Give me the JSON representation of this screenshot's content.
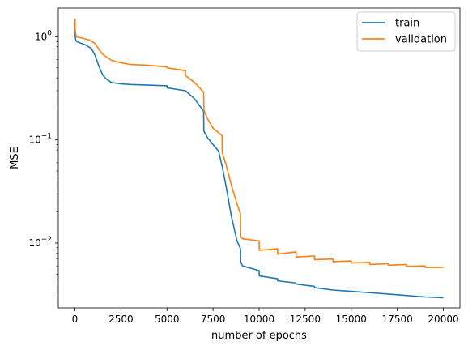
{
  "chart_data": {
    "type": "line",
    "xlabel": "number of epochs",
    "ylabel": "MSE",
    "yscale": "log",
    "xlim": [
      -900,
      20900
    ],
    "ylim": [
      0.00235,
      1.9
    ],
    "grid": false,
    "legend_position": "top-right",
    "x_ticks": [
      0,
      2500,
      5000,
      7500,
      10000,
      12500,
      15000,
      17500,
      20000
    ],
    "x_tick_labels": [
      "0",
      "2500",
      "5000",
      "7500",
      "10000",
      "12500",
      "15000",
      "17500",
      "20000"
    ],
    "y_major_ticks": [
      0.01,
      0.1,
      1
    ],
    "y_tick_labels": [
      {
        "base": "10",
        "exp": "−2"
      },
      {
        "base": "10",
        "exp": "−1"
      },
      {
        "base": "10",
        "exp": "0"
      }
    ],
    "y_minor_ticks": [
      0.003,
      0.004,
      0.005,
      0.006,
      0.007,
      0.008,
      0.009,
      0.02,
      0.03,
      0.04,
      0.05,
      0.06,
      0.07,
      0.08,
      0.09,
      0.2,
      0.3,
      0.4,
      0.5,
      0.6,
      0.7,
      0.8,
      0.9
    ],
    "series": [
      {
        "name": "train",
        "color": "#1f77b4",
        "x": [
          0,
          20,
          50,
          100,
          300,
          600,
          900,
          1100,
          1300,
          1500,
          1700,
          2000,
          2500,
          3000,
          4000,
          5000,
          5010,
          6000,
          6500,
          6990,
          7000,
          7200,
          7500,
          7800,
          8000,
          8200,
          8500,
          8800,
          8990,
          9000,
          9100,
          10000,
          10010,
          11000,
          11010,
          12000,
          12010,
          13000,
          13010,
          14000,
          15000,
          16000,
          17000,
          18000,
          19000,
          20000
        ],
        "y": [
          1.4,
          1.0,
          0.93,
          0.9,
          0.87,
          0.83,
          0.77,
          0.66,
          0.52,
          0.43,
          0.39,
          0.36,
          0.35,
          0.345,
          0.34,
          0.335,
          0.32,
          0.3,
          0.25,
          0.19,
          0.122,
          0.105,
          0.09,
          0.078,
          0.055,
          0.036,
          0.018,
          0.0105,
          0.0088,
          0.0066,
          0.006,
          0.0054,
          0.0048,
          0.0045,
          0.0043,
          0.0041,
          0.004,
          0.0038,
          0.0037,
          0.0035,
          0.0034,
          0.0033,
          0.0032,
          0.0031,
          0.003,
          0.00295
        ]
      },
      {
        "name": "validation",
        "color": "#ff7f0e",
        "x": [
          0,
          20,
          50,
          100,
          400,
          800,
          1100,
          1300,
          1500,
          1700,
          2000,
          2500,
          3000,
          4000,
          5000,
          5010,
          6000,
          6010,
          6500,
          6990,
          7000,
          7200,
          7500,
          7990,
          8000,
          8200,
          8500,
          8800,
          8990,
          9000,
          9100,
          10000,
          10010,
          11000,
          11010,
          12000,
          12010,
          13000,
          13010,
          14000,
          14010,
          15000,
          15010,
          16000,
          16010,
          17000,
          17010,
          18000,
          18010,
          19000,
          19010,
          20000
        ],
        "y": [
          1.5,
          1.15,
          1.05,
          1.0,
          0.97,
          0.93,
          0.86,
          0.76,
          0.68,
          0.64,
          0.59,
          0.56,
          0.54,
          0.53,
          0.51,
          0.5,
          0.47,
          0.42,
          0.36,
          0.29,
          0.195,
          0.16,
          0.13,
          0.11,
          0.075,
          0.058,
          0.036,
          0.024,
          0.019,
          0.0115,
          0.011,
          0.0105,
          0.0085,
          0.0088,
          0.0078,
          0.0082,
          0.0073,
          0.0075,
          0.0069,
          0.007,
          0.0066,
          0.0067,
          0.0064,
          0.0065,
          0.0062,
          0.0063,
          0.0061,
          0.0062,
          0.00595,
          0.006,
          0.0058,
          0.0058
        ]
      }
    ]
  }
}
